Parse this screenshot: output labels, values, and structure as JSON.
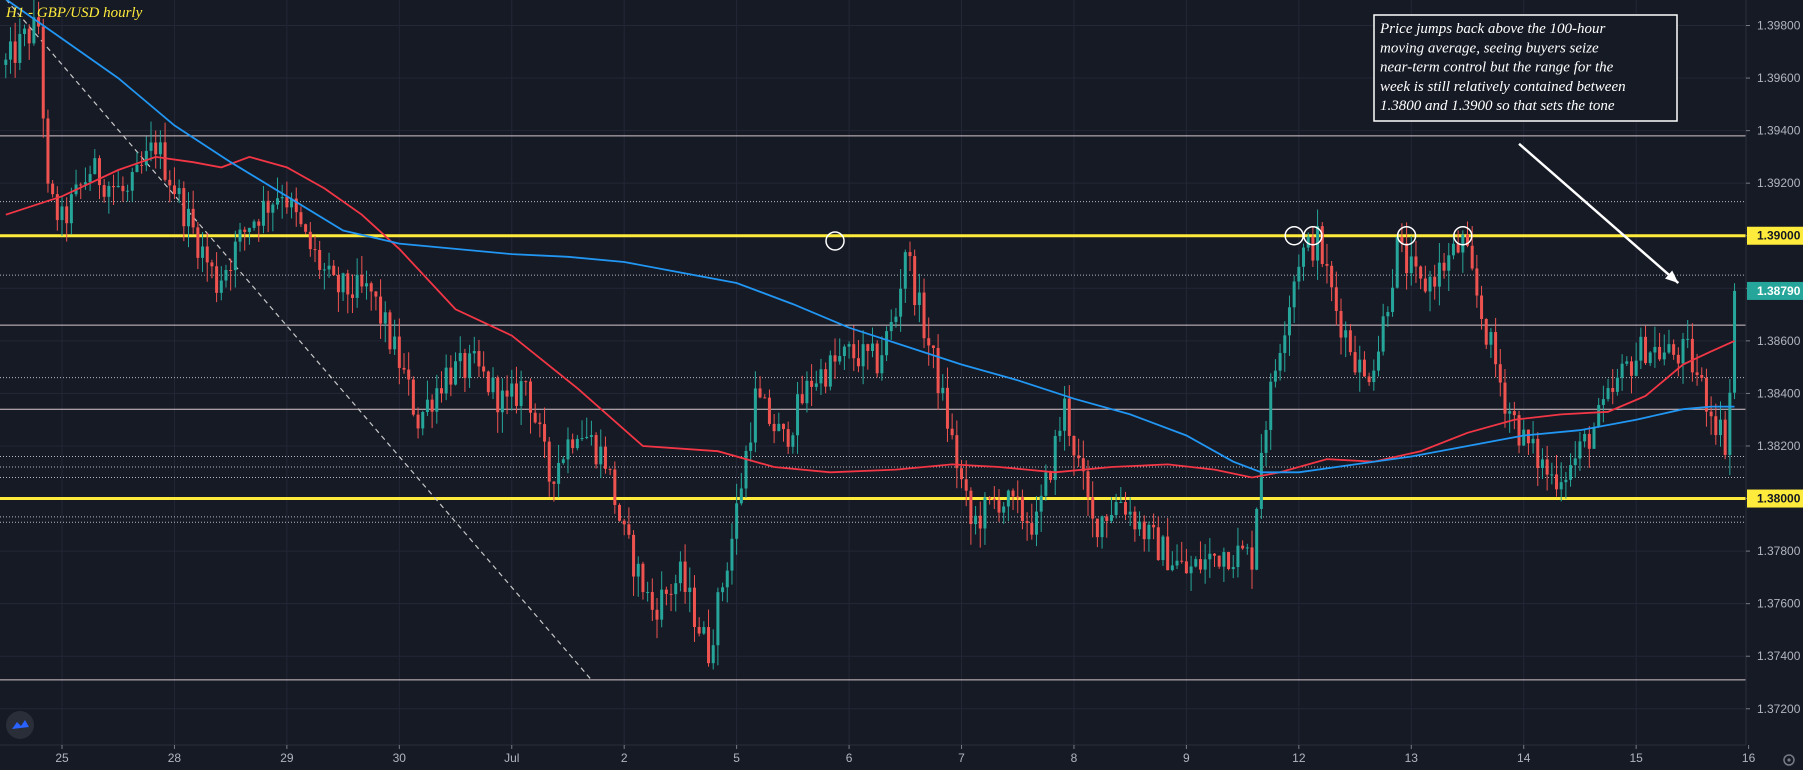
{
  "chart_data": {
    "type": "candlestick",
    "title": "H1 - GBP/USD hourly",
    "ylim": [
      1.3709,
      1.3993
    ],
    "y_ticks": [
      "1.37200",
      "1.37400",
      "1.37600",
      "1.37800",
      "1.38000",
      "1.38200",
      "1.38400",
      "1.38600",
      "1.38800",
      "1.39000",
      "1.39200",
      "1.39400",
      "1.39600",
      "1.39800"
    ],
    "y_tick_values": [
      1.372,
      1.374,
      1.376,
      1.378,
      1.38,
      1.382,
      1.384,
      1.386,
      1.388,
      1.39,
      1.392,
      1.394,
      1.396,
      1.398
    ],
    "x_ticks": [
      "25",
      "28",
      "29",
      "30",
      "Jul",
      "2",
      "5",
      "6",
      "7",
      "8",
      "9",
      "12",
      "13",
      "14",
      "15",
      "16"
    ],
    "x_tick_slots": [
      0,
      24,
      48,
      72,
      96,
      120,
      144,
      168,
      192,
      216,
      240,
      264,
      288,
      312,
      336,
      360
    ],
    "visible_slots": [
      -12,
      357
    ],
    "annotation": {
      "lines": [
        "Price jumps back above the 100-hour",
        "moving average, seeing buyers seize",
        "near-term control but the range for the",
        "week is still relatively contained between",
        "1.3800 and 1.3900 so that sets the tone"
      ]
    },
    "key_levels": [
      {
        "value": 1.39,
        "label": "1.39000",
        "color": "#ffeb3b"
      },
      {
        "value": 1.38,
        "label": "1.38000",
        "color": "#ffeb3b"
      }
    ],
    "last_price": {
      "value": 1.3879,
      "label": "1.38790",
      "color": "#26a69a"
    },
    "horizontal_lines_solid": [
      1.3938,
      1.3866,
      1.3834,
      1.3731
    ],
    "horizontal_lines_dotted": [
      1.3913,
      1.3885,
      1.3846,
      1.3816,
      1.3812,
      1.3808,
      1.3793,
      1.3791
    ],
    "trendline": {
      "from": [
        -12,
        1.399
      ],
      "to": [
        113,
        1.3731
      ]
    },
    "circled_highs": [
      {
        "slot": 165,
        "value": 1.3898
      },
      {
        "slot": 263,
        "value": 1.39
      },
      {
        "slot": 267,
        "value": 1.39
      },
      {
        "slot": 287,
        "value": 1.39
      },
      {
        "slot": 299,
        "value": 1.39
      }
    ],
    "arrow": {
      "from": [
        311,
        1.3935
      ],
      "to": [
        345,
        1.3882
      ]
    },
    "price_keyframes": [
      [
        -12,
        1.3965
      ],
      [
        -8,
        1.3975
      ],
      [
        -5,
        1.398
      ],
      [
        -3,
        1.3915
      ],
      [
        0,
        1.3905
      ],
      [
        6,
        1.3925
      ],
      [
        14,
        1.3915
      ],
      [
        20,
        1.3935
      ],
      [
        26,
        1.391
      ],
      [
        33,
        1.3882
      ],
      [
        40,
        1.3905
      ],
      [
        47,
        1.3918
      ],
      [
        52,
        1.3898
      ],
      [
        58,
        1.388
      ],
      [
        66,
        1.3878
      ],
      [
        72,
        1.3852
      ],
      [
        76,
        1.383
      ],
      [
        82,
        1.3848
      ],
      [
        88,
        1.385
      ],
      [
        95,
        1.3835
      ],
      [
        99,
        1.3845
      ],
      [
        104,
        1.3808
      ],
      [
        110,
        1.3828
      ],
      [
        116,
        1.3815
      ],
      [
        120,
        1.3785
      ],
      [
        126,
        1.3758
      ],
      [
        132,
        1.377
      ],
      [
        138,
        1.3742
      ],
      [
        143,
        1.3785
      ],
      [
        148,
        1.3838
      ],
      [
        154,
        1.3822
      ],
      [
        160,
        1.3845
      ],
      [
        168,
        1.3855
      ],
      [
        174,
        1.3852
      ],
      [
        178,
        1.387
      ],
      [
        180,
        1.3896
      ],
      [
        183,
        1.3872
      ],
      [
        187,
        1.3845
      ],
      [
        194,
        1.379
      ],
      [
        200,
        1.38
      ],
      [
        208,
        1.379
      ],
      [
        214,
        1.3835
      ],
      [
        220,
        1.379
      ],
      [
        226,
        1.38
      ],
      [
        232,
        1.3785
      ],
      [
        240,
        1.3772
      ],
      [
        248,
        1.378
      ],
      [
        254,
        1.3778
      ],
      [
        256,
        1.382
      ],
      [
        260,
        1.386
      ],
      [
        264,
        1.3892
      ],
      [
        268,
        1.3898
      ],
      [
        272,
        1.3872
      ],
      [
        278,
        1.3845
      ],
      [
        281,
        1.3858
      ],
      [
        285,
        1.3895
      ],
      [
        290,
        1.388
      ],
      [
        294,
        1.3887
      ],
      [
        299,
        1.3897
      ],
      [
        303,
        1.387
      ],
      [
        308,
        1.3838
      ],
      [
        312,
        1.3822
      ],
      [
        318,
        1.3808
      ],
      [
        322,
        1.3812
      ],
      [
        328,
        1.383
      ],
      [
        334,
        1.385
      ],
      [
        338,
        1.3858
      ],
      [
        342,
        1.3855
      ],
      [
        347,
        1.3855
      ],
      [
        351,
        1.3838
      ],
      [
        355,
        1.3822
      ],
      [
        358,
        1.3879
      ]
    ],
    "series": [
      {
        "name": "",
        "color": "#f23645",
        "points": [
          [
            -12,
            1.3908
          ],
          [
            0,
            1.3915
          ],
          [
            12,
            1.3925
          ],
          [
            20,
            1.393
          ],
          [
            28,
            1.3928
          ],
          [
            34,
            1.3926
          ],
          [
            40,
            1.393
          ],
          [
            48,
            1.3926
          ],
          [
            56,
            1.3918
          ],
          [
            64,
            1.3908
          ],
          [
            72,
            1.3895
          ],
          [
            84,
            1.3872
          ],
          [
            96,
            1.3862
          ],
          [
            110,
            1.3842
          ],
          [
            124,
            1.382
          ],
          [
            140,
            1.3818
          ],
          [
            152,
            1.3812
          ],
          [
            164,
            1.381
          ],
          [
            178,
            1.3811
          ],
          [
            190,
            1.3813
          ],
          [
            200,
            1.3812
          ],
          [
            212,
            1.381
          ],
          [
            224,
            1.3812
          ],
          [
            236,
            1.3813
          ],
          [
            246,
            1.3811
          ],
          [
            254,
            1.3808
          ],
          [
            260,
            1.381
          ],
          [
            270,
            1.3815
          ],
          [
            280,
            1.3814
          ],
          [
            290,
            1.3818
          ],
          [
            300,
            1.3825
          ],
          [
            310,
            1.383
          ],
          [
            320,
            1.3832
          ],
          [
            330,
            1.3833
          ],
          [
            338,
            1.3839
          ],
          [
            346,
            1.3851
          ],
          [
            352,
            1.3856
          ],
          [
            357,
            1.386
          ]
        ]
      },
      {
        "name": "",
        "color": "#2196f3",
        "points": [
          [
            -12,
            1.399
          ],
          [
            0,
            1.3975
          ],
          [
            12,
            1.396
          ],
          [
            24,
            1.3942
          ],
          [
            36,
            1.3928
          ],
          [
            48,
            1.3915
          ],
          [
            60,
            1.3902
          ],
          [
            72,
            1.3897
          ],
          [
            84,
            1.3895
          ],
          [
            96,
            1.3893
          ],
          [
            108,
            1.3892
          ],
          [
            120,
            1.389
          ],
          [
            132,
            1.3886
          ],
          [
            144,
            1.3882
          ],
          [
            156,
            1.3874
          ],
          [
            168,
            1.3865
          ],
          [
            180,
            1.3858
          ],
          [
            192,
            1.3851
          ],
          [
            204,
            1.3845
          ],
          [
            216,
            1.3838
          ],
          [
            228,
            1.3832
          ],
          [
            240,
            1.3824
          ],
          [
            250,
            1.3814
          ],
          [
            256,
            1.381
          ],
          [
            264,
            1.381
          ],
          [
            276,
            1.3813
          ],
          [
            288,
            1.3816
          ],
          [
            300,
            1.382
          ],
          [
            312,
            1.3824
          ],
          [
            324,
            1.3826
          ],
          [
            336,
            1.383
          ],
          [
            346,
            1.3834
          ],
          [
            352,
            1.3835
          ],
          [
            357,
            1.3835
          ]
        ]
      }
    ]
  }
}
